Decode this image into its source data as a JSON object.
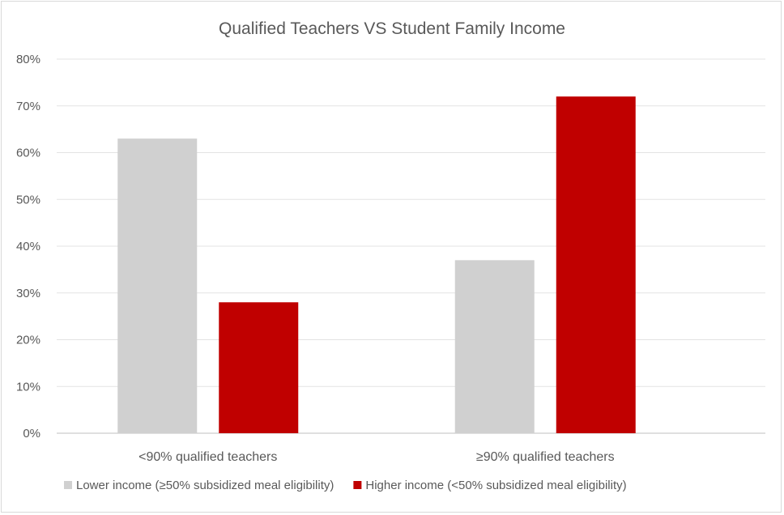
{
  "chart_data": {
    "type": "bar",
    "title": "Qualified Teachers VS Student Family Income",
    "xlabel": "",
    "ylabel": "",
    "categories": [
      "<90% qualified teachers",
      "≥90% qualified teachers"
    ],
    "series": [
      {
        "name": "Lower income (≥50% subsidized meal eligibility)",
        "color": "#d0d0d0",
        "values": [
          63,
          37
        ]
      },
      {
        "name": "Higher income (<50% subsidized meal eligibility)",
        "color": "#c00000",
        "values": [
          28,
          72
        ]
      }
    ],
    "ylim": [
      0,
      80
    ],
    "yticks": [
      0,
      10,
      20,
      30,
      40,
      50,
      60,
      70,
      80
    ],
    "ytick_suffix": "%",
    "grid": true,
    "legend_position": "bottom"
  }
}
